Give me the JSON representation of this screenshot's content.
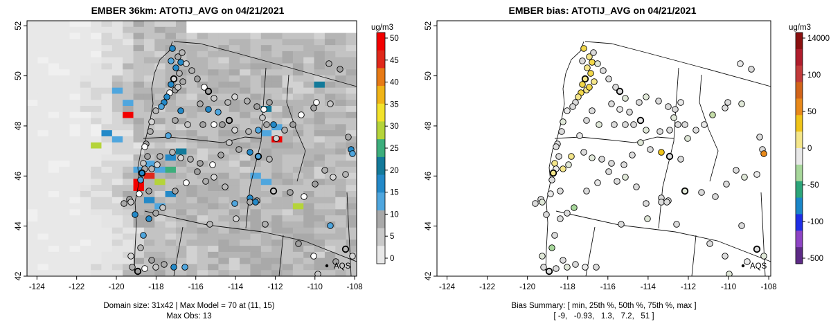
{
  "chart_data": [
    {
      "type": "heatmap",
      "title": "EMBER 36km: ATOTIJ_AVG on 04/21/2021",
      "colorbar": {
        "unit": "ug/m3",
        "ticks": [
          "0",
          "5",
          "10",
          "15",
          "20",
          "25",
          "30",
          "35",
          "40",
          "45",
          "50"
        ],
        "colors": [
          "#e8e8e8",
          "#c9c9c9",
          "#a9a9a9",
          "#4fa6de",
          "#2389c8",
          "#137a9a",
          "#3cae7c",
          "#b5d43a",
          "#f2e22b",
          "#f0b417",
          "#e77a15",
          "#e0281a",
          "#f20000"
        ]
      },
      "x_ticks": [
        "-124",
        "-122",
        "-120",
        "-118",
        "-116",
        "-114",
        "-112",
        "-110",
        "-108"
      ],
      "y_ticks": [
        "42",
        "44",
        "46",
        "48",
        "50",
        "52"
      ],
      "xlim": [
        -124.5,
        -107.9
      ],
      "ylim": [
        42,
        52.2
      ],
      "annotation_line1": "Domain size: 31x42 | Max Model = 70 at (11, 15)",
      "annotation_line2": "Max Obs: 13",
      "legend_label": "AQS"
    },
    {
      "type": "scatter",
      "title": "EMBER bias: ATOTIJ_AVG on 04/21/2021",
      "colorbar": {
        "unit": "ug/m3",
        "ticks": [
          "-500",
          "-100",
          "-50",
          "0",
          "50",
          "100",
          "14000"
        ],
        "colors": [
          "#5d2a86",
          "#8e44c4",
          "#1f2ee6",
          "#1a86c8",
          "#2ca57a",
          "#a7d79b",
          "#e8e8e8",
          "#f4e68a",
          "#f0c419",
          "#e8891a",
          "#d2641a",
          "#c23a3a",
          "#b01d2c",
          "#8b1010"
        ]
      },
      "x_ticks": [
        "-124",
        "-122",
        "-120",
        "-118",
        "-116",
        "-114",
        "-112",
        "-110",
        "-108"
      ],
      "y_ticks": [
        "42",
        "44",
        "46",
        "48",
        "50",
        "52"
      ],
      "xlim": [
        -124.5,
        -107.9
      ],
      "ylim": [
        42,
        52.2
      ],
      "bias_summary_line1": "Bias Summary: [ min, 25th %, 50th %, 75th %, max ]",
      "bias_summary_line2": "[ -9,   -0.93,   1.3,   7.2,   51 ]",
      "legend_label": "AQS"
    }
  ]
}
